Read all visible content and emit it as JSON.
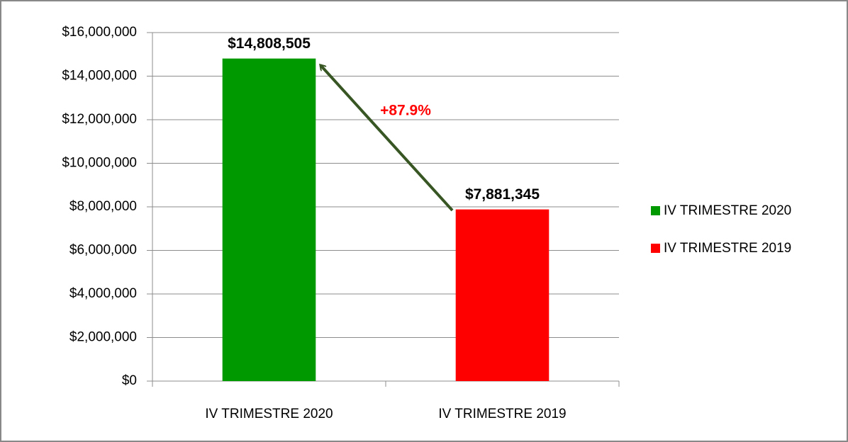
{
  "chart_data": {
    "type": "bar",
    "categories": [
      "IV TRIMESTRE 2020",
      "IV TRIMESTRE 2019"
    ],
    "values": [
      14808505,
      7881345
    ],
    "value_labels": [
      "$14,808,505",
      "$7,881,345"
    ],
    "colors": [
      "#009900",
      "#ff0000"
    ],
    "ylim": [
      0,
      16000000
    ],
    "yticks": [
      {
        "value": 0,
        "label": "$0"
      },
      {
        "value": 2000000,
        "label": "$2,000,000"
      },
      {
        "value": 4000000,
        "label": "$4,000,000"
      },
      {
        "value": 6000000,
        "label": "$6,000,000"
      },
      {
        "value": 8000000,
        "label": "$8,000,000"
      },
      {
        "value": 10000000,
        "label": "$10,000,000"
      },
      {
        "value": 12000000,
        "label": "$12,000,000"
      },
      {
        "value": 14000000,
        "label": "$14,000,000"
      },
      {
        "value": 16000000,
        "label": "$16,000,000"
      }
    ],
    "annotation": "+87.9%",
    "grid": true,
    "legend": "right"
  }
}
